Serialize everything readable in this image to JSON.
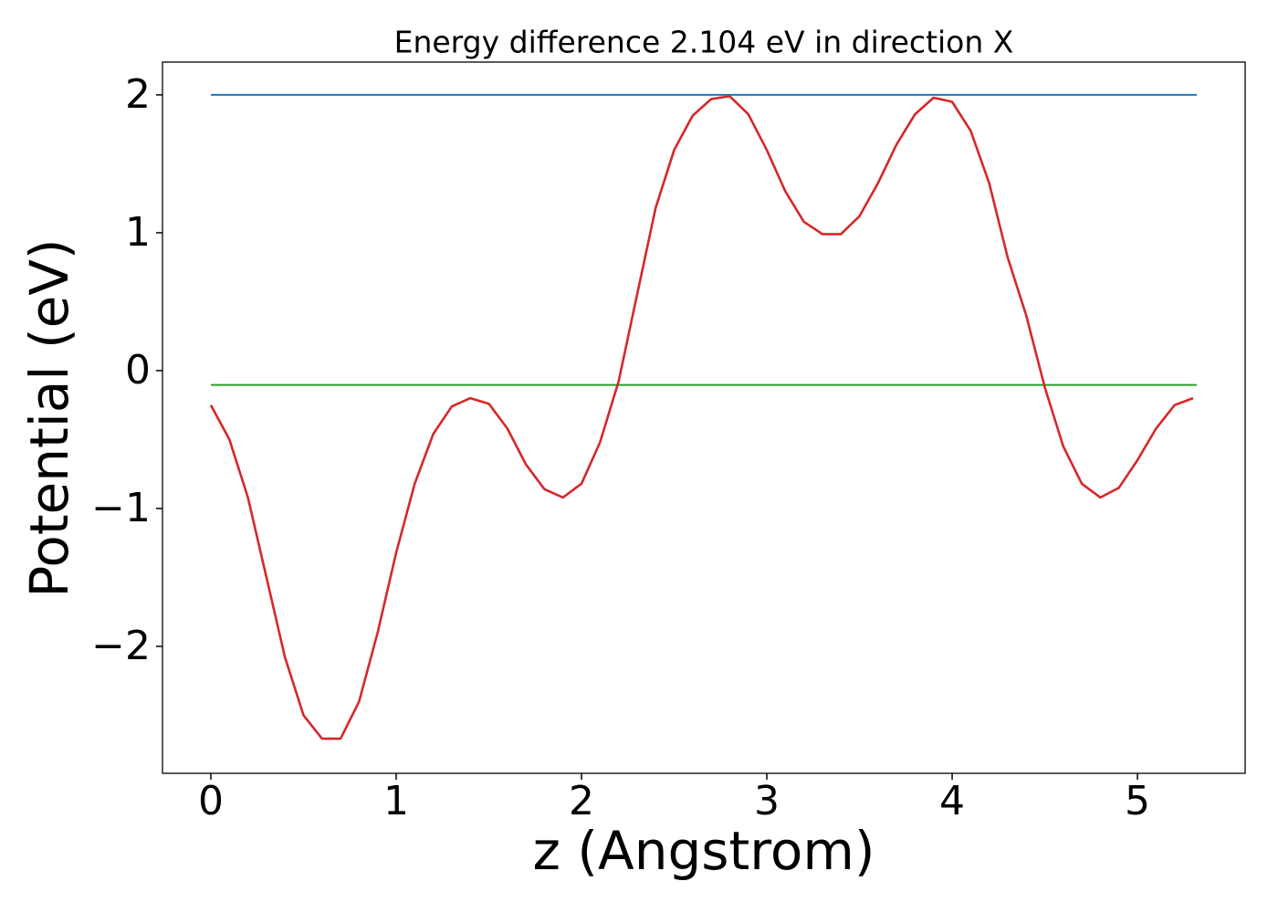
{
  "chart_data": {
    "type": "line",
    "title": "Energy difference 2.104 eV in direction X",
    "x_label": "z (Angstrom)",
    "y_label": "Potential (eV)",
    "xlim": [
      -0.261,
      5.581
    ],
    "ylim": [
      -2.921,
      2.238
    ],
    "xticks": [
      0,
      1,
      2,
      3,
      4,
      5
    ],
    "yticks": [
      {
        "value": -2,
        "label": "−2"
      },
      {
        "value": -1,
        "label": "−1"
      },
      0,
      1,
      2
    ],
    "x": [
      0,
      0.1,
      0.2,
      0.3,
      0.4,
      0.5,
      0.6,
      0.7,
      0.8,
      0.9,
      1.0,
      1.1,
      1.2,
      1.3,
      1.4,
      1.5,
      1.6,
      1.7,
      1.8,
      1.9,
      2.0,
      2.1,
      2.2,
      2.3,
      2.4,
      2.5,
      2.6,
      2.7,
      2.8,
      2.9,
      3.0,
      3.1,
      3.2,
      3.3,
      3.4,
      3.5,
      3.6,
      3.7,
      3.8,
      3.9,
      4.0,
      4.1,
      4.2,
      4.3,
      4.4,
      4.5,
      4.6,
      4.7,
      4.8,
      4.9,
      5.0,
      5.1,
      5.2,
      5.3
    ],
    "series": [
      {
        "color": "#1f77b4",
        "x": [
          0,
          5.32
        ],
        "values": [
          2.0,
          2.0
        ]
      },
      {
        "color": "#2ca02c",
        "x": [
          0,
          5.32
        ],
        "values": [
          -0.104,
          -0.104
        ]
      },
      {
        "color": "#d62728",
        "values": [
          -0.25,
          -0.5,
          -0.92,
          -1.5,
          -2.08,
          -2.5,
          -2.67,
          -2.67,
          -2.4,
          -1.9,
          -1.32,
          -0.82,
          -0.46,
          -0.26,
          -0.2,
          -0.24,
          -0.42,
          -0.68,
          -0.86,
          -0.92,
          -0.82,
          -0.52,
          -0.08,
          0.55,
          1.18,
          1.6,
          1.85,
          1.97,
          1.99,
          1.86,
          1.6,
          1.3,
          1.08,
          0.99,
          0.99,
          1.12,
          1.36,
          1.64,
          1.86,
          1.98,
          1.95,
          1.74,
          1.36,
          0.82,
          0.4,
          -0.12,
          -0.55,
          -0.82,
          -0.92,
          -0.85,
          -0.65,
          -0.42,
          -0.25,
          -0.2
        ]
      }
    ]
  }
}
